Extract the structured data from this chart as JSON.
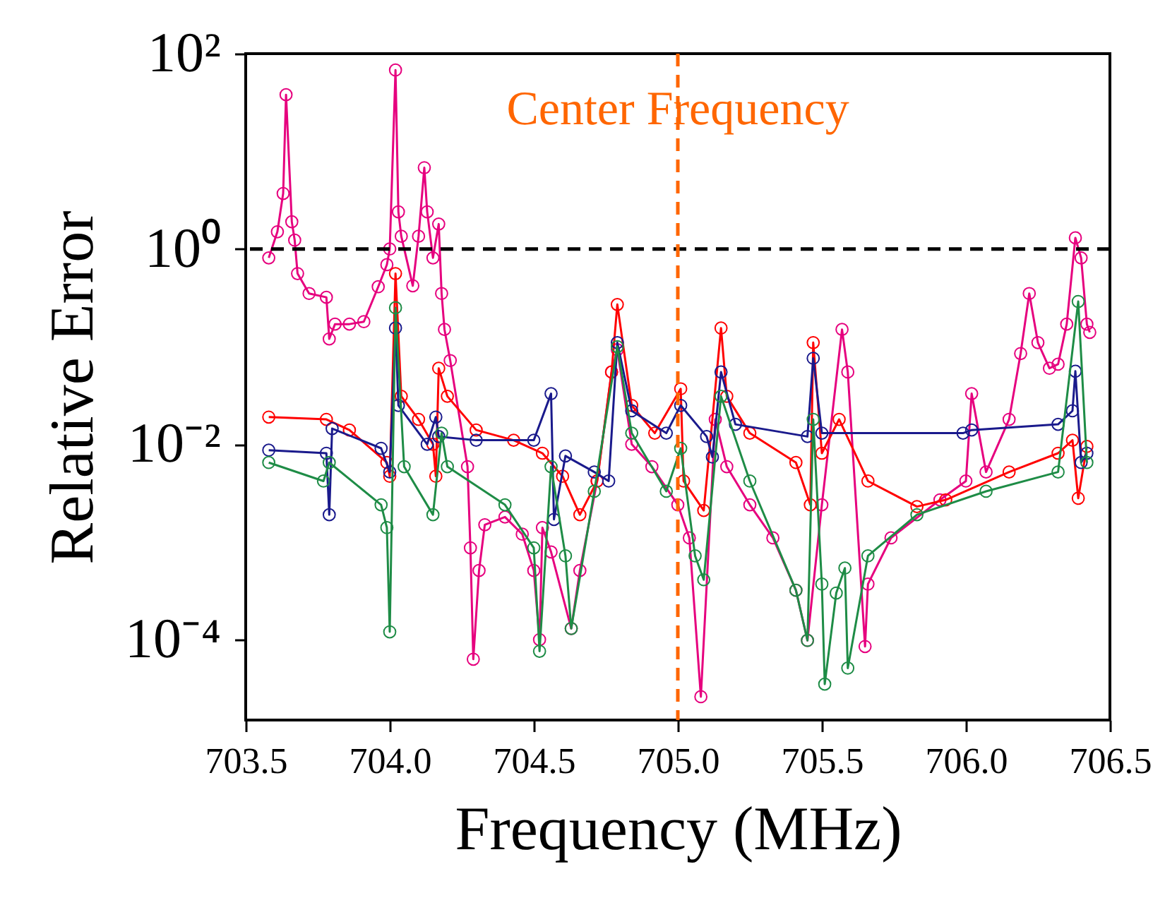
{
  "chart_data": {
    "type": "line",
    "xlabel": "Frequency (MHz)",
    "ylabel": "Relative Error",
    "log": "y",
    "grid": false,
    "marker": "circle",
    "xlim": [
      703.5,
      706.5
    ],
    "xticks": [
      703.5,
      {
        "value": 704,
        "label": "704.0"
      },
      704.5,
      {
        "value": 705,
        "label": "705.0"
      },
      705.5,
      {
        "value": 706,
        "label": "706.0"
      },
      706.5
    ],
    "ylim": [
      1.5e-05,
      100
    ],
    "yticks": [
      {
        "value": 0.0001,
        "label": "10⁻⁴"
      },
      {
        "value": 0.01,
        "label": "10⁻²"
      },
      {
        "value": 1,
        "label": "10⁰"
      },
      {
        "value": 100,
        "label": "10²"
      }
    ],
    "ref_lines": [
      {
        "axis": "y",
        "value": 1,
        "color": "#000000",
        "line_style": "dashed"
      },
      {
        "axis": "x",
        "value": 705,
        "label": "Center Frequency",
        "color": "#ff6600",
        "line_style": "dashed"
      }
    ],
    "series": [
      {
        "color": "#e6007e",
        "x": [
          703.58,
          703.61,
          703.63,
          703.64,
          703.66,
          703.67,
          703.68,
          703.72,
          703.78,
          703.79,
          703.81,
          703.86,
          703.91,
          703.96,
          703.99,
          704.0,
          704.02,
          704.03,
          704.04,
          704.08,
          704.1,
          704.12,
          704.13,
          704.15,
          704.17,
          704.18,
          704.19,
          704.21,
          704.27,
          704.28,
          704.29,
          704.31,
          704.33,
          704.4,
          704.46,
          704.5,
          704.52,
          704.53,
          704.56,
          704.63,
          704.66,
          704.72,
          704.77,
          704.79,
          704.84,
          704.91,
          705.0,
          705.04,
          705.08,
          705.13,
          705.17,
          705.25,
          705.33,
          705.41,
          705.45,
          705.5,
          705.57,
          705.59,
          705.65,
          705.66,
          705.74,
          705.91,
          706.0,
          706.02,
          706.07,
          706.15,
          706.19,
          706.22,
          706.25,
          706.29,
          706.32,
          706.35,
          706.38,
          706.4,
          706.42,
          706.43
        ],
        "values": [
          0.81,
          1.5,
          3.7,
          38,
          1.9,
          1.23,
          0.56,
          0.35,
          0.32,
          0.12,
          0.17,
          0.17,
          0.18,
          0.41,
          0.69,
          1.0,
          68,
          2.4,
          1.35,
          0.42,
          1.35,
          6.8,
          2.4,
          0.81,
          1.8,
          0.35,
          0.15,
          0.072,
          0.0059,
          0.00087,
          6.3e-05,
          0.00051,
          0.0015,
          0.0018,
          0.0012,
          0.00051,
          0.0001,
          0.0014,
          0.00079,
          0.00013,
          0.00051,
          0.0042,
          0.055,
          0.093,
          0.01,
          0.0059,
          0.0024,
          0.0011,
          2.6e-05,
          0.018,
          0.0059,
          0.0024,
          0.0011,
          0.00032,
          9.8e-05,
          0.0024,
          0.15,
          0.055,
          8.5e-05,
          0.00037,
          0.0011,
          0.0027,
          0.0042,
          0.033,
          0.0052,
          0.018,
          0.085,
          0.35,
          0.11,
          0.06,
          0.066,
          0.17,
          1.3,
          0.81,
          0.17,
          0.14
        ]
      },
      {
        "color": "#ff0000",
        "x": [
          703.58,
          703.78,
          703.86,
          703.99,
          704.0,
          704.02,
          704.04,
          704.1,
          704.15,
          704.16,
          704.17,
          704.2,
          704.3,
          704.43,
          704.53,
          704.6,
          704.66,
          704.72,
          704.77,
          704.79,
          704.84,
          704.92,
          705.01,
          705.02,
          705.09,
          705.15,
          705.17,
          705.25,
          705.41,
          705.46,
          705.47,
          705.5,
          705.56,
          705.66,
          705.83,
          705.93,
          706.15,
          706.32,
          706.37,
          706.39,
          706.42
        ],
        "values": [
          0.019,
          0.018,
          0.014,
          0.0065,
          0.0047,
          0.56,
          0.031,
          0.018,
          0.01,
          0.0047,
          0.06,
          0.031,
          0.014,
          0.011,
          0.0081,
          0.0047,
          0.0019,
          0.0042,
          0.055,
          0.27,
          0.025,
          0.013,
          0.037,
          0.0042,
          0.0021,
          0.155,
          0.031,
          0.013,
          0.0065,
          0.0024,
          0.11,
          0.0081,
          0.018,
          0.0042,
          0.0023,
          0.0027,
          0.0052,
          0.0081,
          0.011,
          0.0028,
          0.0095
        ]
      },
      {
        "color": "#1a1a8c",
        "x": [
          703.58,
          703.78,
          703.79,
          703.8,
          703.97,
          704.0,
          704.02,
          704.03,
          704.13,
          704.16,
          704.17,
          704.3,
          704.5,
          704.56,
          704.57,
          704.61,
          704.71,
          704.76,
          704.79,
          704.84,
          704.96,
          705.01,
          705.1,
          705.12,
          705.15,
          705.2,
          705.45,
          705.47,
          705.5,
          705.99,
          706.02,
          706.32,
          706.37,
          706.38,
          706.4,
          706.42
        ],
        "values": [
          0.0087,
          0.0081,
          0.0019,
          0.0145,
          0.0091,
          0.0052,
          0.155,
          0.025,
          0.01,
          0.019,
          0.012,
          0.011,
          0.011,
          0.033,
          0.0017,
          0.0076,
          0.0052,
          0.0042,
          0.11,
          0.022,
          0.013,
          0.025,
          0.012,
          0.0074,
          0.055,
          0.016,
          0.012,
          0.076,
          0.013,
          0.013,
          0.014,
          0.016,
          0.022,
          0.056,
          0.0065,
          0.0081
        ]
      },
      {
        "color": "#1e8c46",
        "x": [
          703.58,
          703.77,
          703.79,
          703.97,
          703.99,
          704.0,
          704.02,
          704.05,
          704.15,
          704.18,
          704.2,
          704.4,
          704.5,
          704.52,
          704.56,
          704.61,
          704.63,
          704.71,
          704.79,
          704.84,
          704.96,
          705.01,
          705.06,
          705.09,
          705.15,
          705.25,
          705.41,
          705.45,
          705.47,
          705.5,
          705.51,
          705.55,
          705.58,
          705.59,
          705.66,
          705.83,
          706.07,
          706.32,
          706.39,
          706.42
        ],
        "values": [
          0.0065,
          0.0042,
          0.0065,
          0.0024,
          0.0014,
          0.00012,
          0.25,
          0.0059,
          0.0019,
          0.013,
          0.0059,
          0.0024,
          0.00087,
          7.6e-05,
          0.0059,
          0.00072,
          0.00013,
          0.0033,
          0.1,
          0.013,
          0.0033,
          0.0091,
          0.00072,
          0.00041,
          0.031,
          0.0042,
          0.00032,
          9.8e-05,
          0.018,
          0.00037,
          3.5e-05,
          0.0003,
          0.00054,
          5.1e-05,
          0.00072,
          0.0019,
          0.0033,
          0.0052,
          0.29,
          0.0065
        ]
      }
    ]
  }
}
